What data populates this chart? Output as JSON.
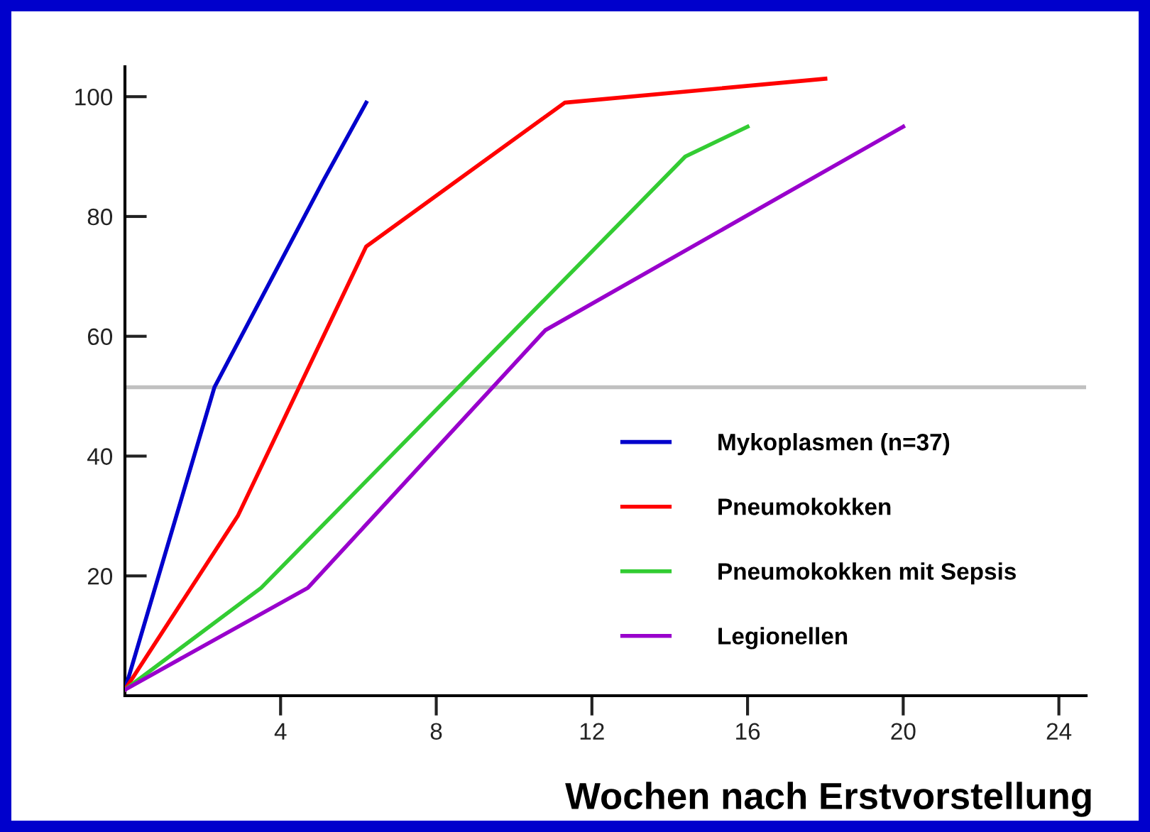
{
  "chart_data": {
    "type": "line",
    "xlabel": "Wochen nach Erstvorstellung",
    "series": [
      {
        "name": "Mykoplasmen (n=37)",
        "color": "#0000cc",
        "x": [
          0,
          2.3,
          5.1,
          6.2
        ],
        "values": [
          1,
          51.5,
          86,
          99
        ]
      },
      {
        "name": "Pneumokokken",
        "color": "#ff0000",
        "x": [
          0,
          2.9,
          6.2,
          11.3,
          18
        ],
        "values": [
          1,
          30,
          75,
          99,
          103
        ]
      },
      {
        "name": "Pneumokokken mit Sepsis",
        "color": "#33cc33",
        "x": [
          0,
          3.5,
          14.4,
          16
        ],
        "values": [
          1,
          18,
          90,
          95
        ]
      },
      {
        "name": "Legionellen",
        "color": "#9900cc",
        "x": [
          0,
          4.7,
          10.8,
          20
        ],
        "values": [
          1,
          18,
          61,
          95
        ]
      }
    ],
    "xlim": [
      0,
      24.7
    ],
    "xticks": [
      4,
      8,
      12,
      16,
      20,
      24
    ],
    "ylim": [
      0,
      105
    ],
    "yticks": [
      20,
      40,
      60,
      80,
      100
    ],
    "ref_lines": [
      {
        "axis": "y",
        "value": 51.5,
        "color": "#c0c0c0"
      }
    ],
    "legend": "bottom right",
    "grid": false,
    "marker": "none",
    "line_style": "solid"
  }
}
